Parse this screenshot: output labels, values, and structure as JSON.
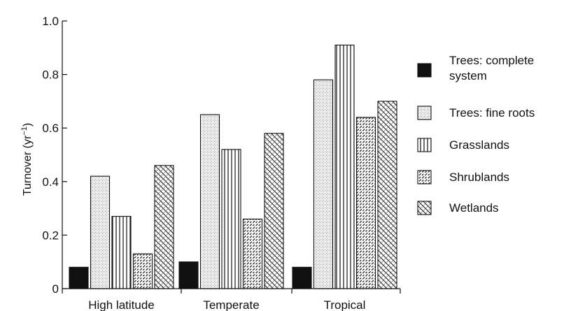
{
  "chart_data": {
    "type": "bar",
    "categories": [
      "High latitude",
      "Temperate",
      "Tropical"
    ],
    "series": [
      {
        "name_lines": [
          "Trees: complete",
          "system"
        ],
        "values": [
          0.08,
          0.1,
          0.08
        ],
        "pattern": "solid"
      },
      {
        "name_lines": [
          "Trees: fine roots"
        ],
        "values": [
          0.42,
          0.65,
          0.78
        ],
        "pattern": "stipple"
      },
      {
        "name_lines": [
          "Grasslands"
        ],
        "values": [
          0.27,
          0.52,
          0.91
        ],
        "pattern": "vertical-lines"
      },
      {
        "name_lines": [
          "Shrublands"
        ],
        "values": [
          0.13,
          0.26,
          0.64
        ],
        "pattern": "diagonal-dashed"
      },
      {
        "name_lines": [
          "Wetlands"
        ],
        "values": [
          0.46,
          0.58,
          0.7
        ],
        "pattern": "cross-hatch"
      }
    ],
    "ylabel": "Turnover (yr",
    "ylabel_sup": "−1",
    "ylabel_close": ")",
    "ylim": [
      0,
      1.0
    ],
    "yticks": [
      0,
      0.2,
      0.4,
      0.6,
      0.8,
      1.0
    ],
    "ytick_labels": [
      "0",
      "0.2",
      "0.4",
      "0.6",
      "0.8",
      "1.0"
    ],
    "grid": false,
    "legend_position": "right"
  }
}
